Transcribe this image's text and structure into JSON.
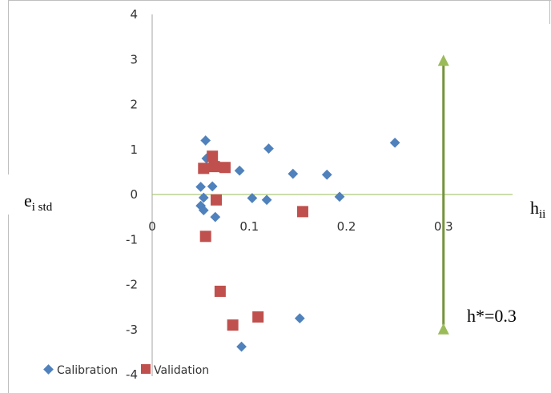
{
  "chart_data": {
    "type": "scatter",
    "xlabel": "h",
    "xlabel_sub": "ii",
    "ylabel": "e",
    "ylabel_sub": "i std",
    "xlim": [
      0,
      0.4
    ],
    "ylim": [
      -4,
      4
    ],
    "x_ticks": [
      "0",
      "0.1",
      "0.2",
      "0.3"
    ],
    "y_ticks": [
      "4",
      "3",
      "2",
      "1",
      "0",
      "-1",
      "-2",
      "-3",
      "-4"
    ],
    "grid": false,
    "legend": "bottom-left",
    "series": [
      {
        "name": "Calibration",
        "marker": "diamond",
        "color": "#4f81bd",
        "points": [
          [
            0.055,
            1.2
          ],
          [
            0.056,
            0.8
          ],
          [
            0.05,
            0.17
          ],
          [
            0.053,
            -0.07
          ],
          [
            0.05,
            -0.25
          ],
          [
            0.053,
            -0.35
          ],
          [
            0.062,
            0.18
          ],
          [
            0.065,
            -0.5
          ],
          [
            0.09,
            0.53
          ],
          [
            0.103,
            -0.08
          ],
          [
            0.118,
            -0.12
          ],
          [
            0.12,
            1.02
          ],
          [
            0.145,
            0.46
          ],
          [
            0.18,
            0.44
          ],
          [
            0.193,
            -0.05
          ],
          [
            0.25,
            1.15
          ],
          [
            0.152,
            -2.75
          ],
          [
            0.092,
            -3.38
          ]
        ]
      },
      {
        "name": "Validation",
        "marker": "square",
        "color": "#c0504d",
        "points": [
          [
            0.053,
            0.58
          ],
          [
            0.062,
            0.85
          ],
          [
            0.064,
            0.62
          ],
          [
            0.075,
            0.6
          ],
          [
            0.066,
            -0.12
          ],
          [
            0.155,
            -0.38
          ],
          [
            0.055,
            -0.93
          ],
          [
            0.07,
            -2.15
          ],
          [
            0.083,
            -2.9
          ],
          [
            0.109,
            -2.72
          ]
        ]
      }
    ],
    "reference_line": {
      "x": 0.3,
      "y_range": [
        -3,
        3
      ],
      "color": "#77933c"
    },
    "annotation": "h*=0.3",
    "colors": {
      "axis": "#a6a6a6",
      "zero_line": "#9bbb59",
      "frame": "#bfbfbf"
    }
  }
}
